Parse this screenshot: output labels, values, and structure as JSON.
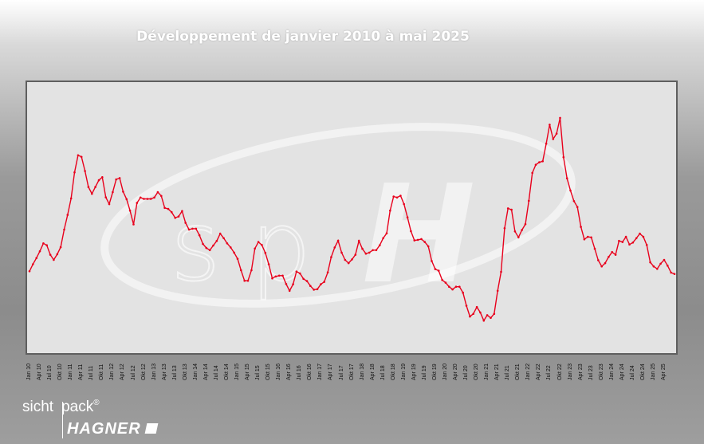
{
  "page": {
    "title": "Développement de janvier 2010 à mai 2025"
  },
  "logo": {
    "brand_top": "sicht",
    "brand_top_b": "pack",
    "registered": "®",
    "brand_bottom": "HAGNER",
    "watermark_s": "s",
    "watermark_p": "p",
    "watermark_h": "H"
  },
  "chart_data": {
    "type": "line",
    "title": "Développement de janvier 2010 à mai 2025",
    "xlabel": "",
    "ylabel": "",
    "ylim": [
      0,
      100
    ],
    "grid": false,
    "legend": "none",
    "line_color": "#e8001c",
    "start": "Jan 10",
    "ticks": [
      "Jan 10",
      "Apr 10",
      "Jul 10",
      "Okt 10",
      "Jan 11",
      "Apr 11",
      "Jul 11",
      "Okt 11",
      "Jan 12",
      "Apr 12",
      "Jul 12",
      "Okt 12",
      "Jan 13",
      "Apr 13",
      "Jul 13",
      "Okt 13",
      "Jan 14",
      "Apr 14",
      "Jul 14",
      "Okt 14",
      "Jan 15",
      "Apr 15",
      "Jul 15",
      "Okt 15",
      "Jan 16",
      "Apr 16",
      "Jul 16",
      "Okt 16",
      "Jan 17",
      "Apr 17",
      "Jul 17",
      "Okt 17",
      "Jan 18",
      "Apr 18",
      "Jul 18",
      "Okt 18",
      "Jan 19",
      "Apr 19",
      "Jul 19",
      "Okt 19",
      "Jan 20",
      "Apr 20",
      "Jul 20",
      "Okt 20",
      "Jan 21",
      "Apr 21",
      "Jul 21",
      "Okt 21",
      "Jan 22",
      "Apr 22",
      "Jul 22",
      "Okt 22",
      "Jan 23",
      "Apr 23",
      "Jul 23",
      "Okt 23",
      "Jan 24",
      "Apr 24",
      "Jul 24",
      "Okt 24",
      "Jan 25",
      "Apr 25"
    ],
    "values": [
      30.2,
      32.8,
      35.1,
      37.6,
      40.5,
      39.8,
      36.3,
      34.4,
      36.5,
      39.1,
      45.6,
      51.0,
      57.1,
      66.7,
      73.0,
      72.4,
      67.2,
      61.3,
      58.8,
      61.3,
      63.8,
      64.9,
      57.5,
      55.0,
      59.4,
      64.1,
      64.6,
      59.6,
      56.8,
      52.6,
      47.5,
      55.4,
      57.4,
      56.9,
      56.9,
      56.9,
      57.4,
      59.4,
      58.0,
      53.6,
      53.2,
      52.0,
      49.9,
      50.4,
      52.4,
      48.1,
      45.6,
      45.9,
      45.9,
      43.5,
      40.3,
      38.8,
      38.0,
      39.7,
      41.4,
      44.1,
      42.4,
      40.5,
      39.0,
      37.1,
      34.8,
      30.6,
      26.7,
      26.7,
      30.6,
      38.6,
      41.0,
      39.9,
      37.0,
      32.8,
      27.6,
      28.3,
      28.6,
      28.6,
      25.5,
      23.0,
      25.4,
      30.1,
      29.4,
      27.4,
      26.6,
      24.8,
      23.4,
      23.6,
      25.4,
      26.3,
      29.8,
      35.4,
      39.0,
      41.5,
      37.1,
      34.4,
      33.2,
      34.6,
      36.3,
      41.4,
      38.5,
      36.7,
      37.1,
      38.0,
      38.0,
      39.8,
      42.4,
      44.2,
      52.6,
      57.8,
      57.4,
      58.1,
      55.0,
      50.1,
      45.0,
      41.6,
      41.8,
      42.1,
      41.0,
      39.4,
      34.0,
      31.0,
      30.4,
      27.0,
      26.0,
      24.5,
      23.5,
      24.5,
      24.5,
      22.3,
      17.5,
      13.5,
      14.5,
      17.0,
      15.0,
      12.0,
      14.0,
      13.0,
      14.5,
      23.0,
      30.0,
      46.1,
      53.4,
      52.9,
      44.9,
      42.7,
      45.4,
      47.6,
      56.2,
      66.5,
      69.5,
      70.4,
      70.8,
      77.3,
      84.3,
      79.0,
      81.0,
      86.8,
      72.3,
      64.5,
      60.0,
      56.1,
      53.9,
      46.6,
      42.0,
      42.9,
      42.7,
      38.5,
      34.3,
      32.0,
      33.2,
      35.5,
      37.3,
      36.3,
      41.4,
      41.0,
      42.9,
      40.1,
      40.8,
      42.4,
      44.1,
      42.9,
      39.9,
      33.5,
      32.0,
      31.1,
      33.0,
      34.4,
      32.3,
      29.7,
      29.2
    ]
  }
}
